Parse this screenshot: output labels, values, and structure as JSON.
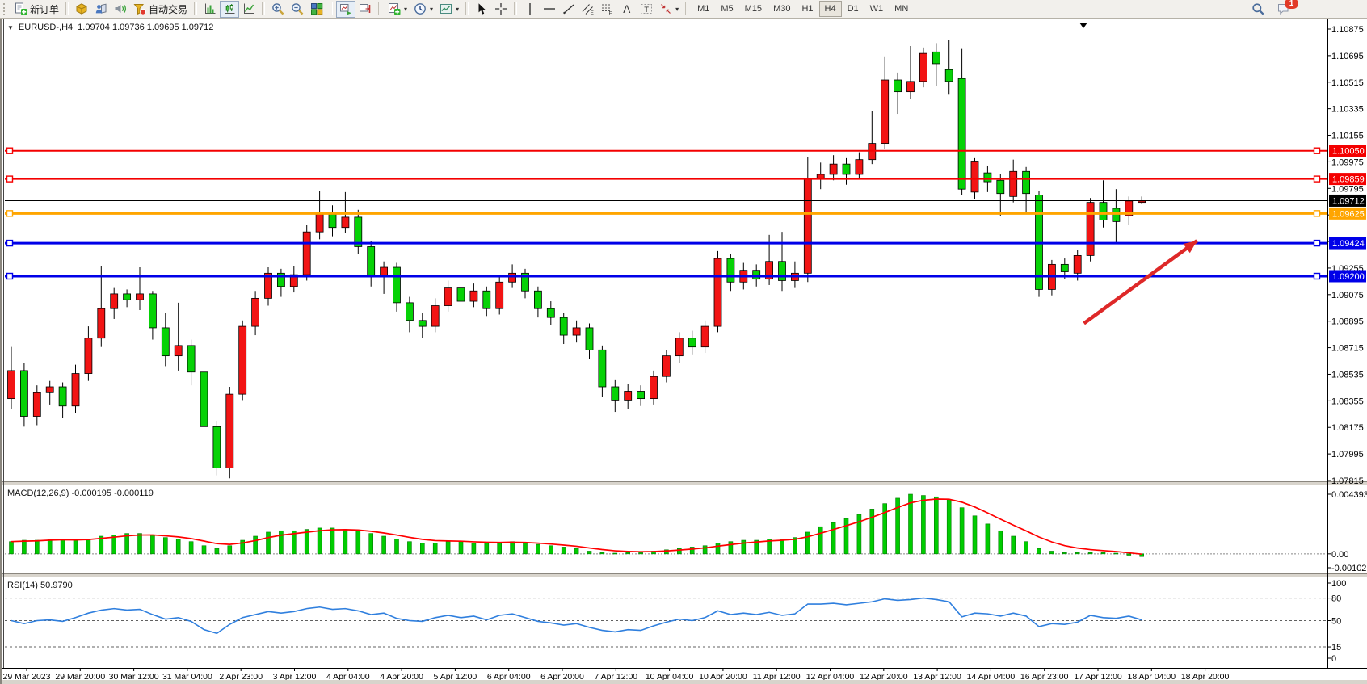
{
  "toolbar": {
    "buttons": [
      {
        "icon": "new-order",
        "label": "新订单",
        "name": "new-order-button"
      },
      {
        "sep": true
      },
      {
        "icon": "market-watch",
        "name": "market-watch-button"
      },
      {
        "icon": "data-window",
        "name": "data-window-button"
      },
      {
        "icon": "navigator",
        "name": "navigator-button"
      },
      {
        "icon": "auto-trading",
        "label": "自动交易",
        "name": "auto-trading-button"
      },
      {
        "sep": true
      },
      {
        "icon": "bar-chart",
        "name": "bar-chart-button"
      },
      {
        "icon": "candle-chart",
        "name": "candle-chart-button",
        "pressed": true
      },
      {
        "icon": "line-chart",
        "name": "line-chart-button"
      },
      {
        "sep": true
      },
      {
        "icon": "zoom-in",
        "name": "zoom-in-button"
      },
      {
        "icon": "zoom-out",
        "name": "zoom-out-button"
      },
      {
        "icon": "tile-windows",
        "name": "tile-windows-button"
      },
      {
        "sep": true
      },
      {
        "icon": "auto-scroll",
        "name": "auto-scroll-button",
        "pressed": true
      },
      {
        "icon": "chart-shift",
        "name": "chart-shift-button"
      },
      {
        "sep": true
      },
      {
        "icon": "indicators",
        "name": "indicators-button",
        "dd": true
      },
      {
        "icon": "periods",
        "name": "periods-button",
        "dd": true
      },
      {
        "icon": "templates",
        "name": "templates-button",
        "dd": true
      },
      {
        "sep": true
      },
      {
        "icon": "cursor",
        "name": "cursor-button"
      },
      {
        "icon": "crosshair",
        "name": "crosshair-button"
      },
      {
        "sep": true
      },
      {
        "icon": "vline",
        "name": "vertical-line-button"
      },
      {
        "icon": "hline",
        "name": "horizontal-line-button"
      },
      {
        "icon": "trendline",
        "name": "trendline-button"
      },
      {
        "icon": "channel",
        "name": "equidistant-channel-button"
      },
      {
        "icon": "fibo",
        "name": "fibonacci-button"
      },
      {
        "icon": "text",
        "name": "text-button"
      },
      {
        "icon": "text-label",
        "name": "text-label-button"
      },
      {
        "icon": "arrows",
        "name": "arrows-button",
        "dd": true
      },
      {
        "sep": true
      }
    ],
    "timeframes": [
      "M1",
      "M5",
      "M15",
      "M30",
      "H1",
      "H4",
      "D1",
      "W1",
      "MN"
    ],
    "active_timeframe": "H4",
    "notification_count": "1"
  },
  "title": {
    "symbol_period": "EURUSD-,H4",
    "ohlc": "1.09704 1.09736 1.09695 1.09712"
  },
  "indicators": {
    "macd": {
      "name": "MACD(12,26,9)",
      "value_main": "-0.000195",
      "value_signal": "-0.000119"
    },
    "rsi": {
      "name": "RSI(14)",
      "value": "50.9790"
    }
  },
  "colors": {
    "bull": "#f21414",
    "bear": "#06d206",
    "candle_stroke": "#000000",
    "line_red": "#f40000",
    "line_blue": "#0000e8",
    "line_orange": "#ffa500",
    "price_line": "#000000",
    "macd_hist": "#00cc00",
    "macd_signal": "#ff0000",
    "rsi_line": "#2f7fde",
    "rsi_level": "#606060",
    "arrow": "#de2828",
    "badge_text": "#ffffff"
  },
  "chart_data": [
    {
      "type": "candlestick",
      "title": "EURUSD-,H4",
      "price_axis": {
        "top_price": 1.10875,
        "bottom_price": 1.07815,
        "tick_step": 0.0018,
        "labels": [
          "1.10875",
          "1.10695",
          "1.10515",
          "1.10335",
          "1.10155",
          "1.09975",
          "1.09795",
          "1.09615",
          "1.09435",
          "1.09255",
          "1.09075",
          "1.08895",
          "1.08715",
          "1.08535",
          "1.08355",
          "1.08175",
          "1.07995",
          "1.07815"
        ]
      },
      "hlines": [
        {
          "price": 1.1005,
          "label": "1.10050",
          "color": "#f40000",
          "width": 2,
          "markers": true
        },
        {
          "price": 1.09859,
          "label": "1.09859",
          "color": "#f40000",
          "width": 2,
          "markers": true
        },
        {
          "price": 1.09712,
          "label": "1.09712",
          "color": "#000000",
          "width": 1,
          "markers": false
        },
        {
          "price": 1.09625,
          "label": "1.09625",
          "color": "#ffa500",
          "width": 3,
          "markers": true
        },
        {
          "price": 1.09424,
          "label": "1.09424",
          "color": "#0000e8",
          "width": 3,
          "markers": true
        },
        {
          "price": 1.092,
          "label": "1.09200",
          "color": "#0000e8",
          "width": 3,
          "markers": true
        }
      ],
      "time_labels": [
        "29 Mar 2023",
        "29 Mar 20:00",
        "30 Mar 12:00",
        "31 Mar 04:00",
        "2 Apr 23:00",
        "3 Apr 12:00",
        "4 Apr 04:00",
        "4 Apr 20:00",
        "5 Apr 12:00",
        "6 Apr 04:00",
        "6 Apr 20:00",
        "7 Apr 12:00",
        "10 Apr 04:00",
        "10 Apr 20:00",
        "11 Apr 12:00",
        "12 Apr 04:00",
        "12 Apr 20:00",
        "13 Apr 12:00",
        "14 Apr 04:00",
        "16 Apr 23:00",
        "17 Apr 12:00",
        "18 Apr 04:00",
        "18 Apr 20:00"
      ],
      "candles_ohlc": [
        [
          1.0837,
          1.0872,
          1.083,
          1.0856
        ],
        [
          1.0856,
          1.0861,
          1.0818,
          1.0825
        ],
        [
          1.0825,
          1.0846,
          1.0819,
          1.0841
        ],
        [
          1.0841,
          1.0849,
          1.0833,
          1.0845
        ],
        [
          1.0845,
          1.0848,
          1.0824,
          1.0832
        ],
        [
          1.0832,
          1.086,
          1.0827,
          1.0854
        ],
        [
          1.0854,
          1.0886,
          1.0849,
          1.0878
        ],
        [
          1.0878,
          1.0927,
          1.0872,
          1.0898
        ],
        [
          1.0898,
          1.0912,
          1.0891,
          1.0908
        ],
        [
          1.0908,
          1.0911,
          1.0899,
          1.0904
        ],
        [
          1.0904,
          1.0926,
          1.0897,
          1.0908
        ],
        [
          1.0908,
          1.091,
          1.0877,
          1.0885
        ],
        [
          1.0885,
          1.0895,
          1.0859,
          1.0866
        ],
        [
          1.0866,
          1.0902,
          1.0856,
          1.0873
        ],
        [
          1.0873,
          1.0877,
          1.0846,
          1.0855
        ],
        [
          1.0855,
          1.0857,
          1.081,
          1.0818
        ],
        [
          1.0818,
          1.0822,
          1.0785,
          1.079
        ],
        [
          1.079,
          1.0845,
          1.0783,
          1.084
        ],
        [
          1.084,
          1.089,
          1.0836,
          1.0886
        ],
        [
          1.0886,
          1.091,
          1.088,
          1.0905
        ],
        [
          1.0905,
          1.0926,
          1.09,
          1.0922
        ],
        [
          1.0922,
          1.0925,
          1.0906,
          1.0913
        ],
        [
          1.0913,
          1.0927,
          1.0909,
          1.0921
        ],
        [
          1.0921,
          1.0955,
          1.0917,
          1.095
        ],
        [
          1.095,
          1.0978,
          1.0945,
          1.0962
        ],
        [
          1.0962,
          1.0968,
          1.0947,
          1.0953
        ],
        [
          1.0953,
          1.0977,
          1.0949,
          1.096
        ],
        [
          1.096,
          1.0965,
          1.0935,
          1.094
        ],
        [
          1.094,
          1.0944,
          1.0913,
          1.092
        ],
        [
          1.092,
          1.093,
          1.0908,
          1.0926
        ],
        [
          1.0926,
          1.0929,
          1.0896,
          1.0902
        ],
        [
          1.0902,
          1.0906,
          1.0882,
          1.089
        ],
        [
          1.089,
          1.0895,
          1.0878,
          1.0886
        ],
        [
          1.0886,
          1.0905,
          1.0882,
          1.09
        ],
        [
          1.09,
          1.0917,
          1.0896,
          1.0912
        ],
        [
          1.0912,
          1.0916,
          1.0898,
          1.0903
        ],
        [
          1.0903,
          1.0915,
          1.0899,
          1.091
        ],
        [
          1.091,
          1.0913,
          1.0893,
          1.0898
        ],
        [
          1.0898,
          1.0921,
          1.0894,
          1.0916
        ],
        [
          1.0916,
          1.0928,
          1.0912,
          1.0922
        ],
        [
          1.0922,
          1.0925,
          1.0905,
          1.091
        ],
        [
          1.091,
          1.0913,
          1.0892,
          1.0898
        ],
        [
          1.0898,
          1.0903,
          1.0887,
          1.0892
        ],
        [
          1.0892,
          1.0895,
          1.0874,
          1.088
        ],
        [
          1.088,
          1.089,
          1.0875,
          1.0885
        ],
        [
          1.0885,
          1.0888,
          1.0864,
          1.087
        ],
        [
          1.087,
          1.0873,
          1.0838,
          1.0845
        ],
        [
          1.0845,
          1.085,
          1.0828,
          1.0836
        ],
        [
          1.0836,
          1.0847,
          1.083,
          1.0842
        ],
        [
          1.0842,
          1.0846,
          1.0832,
          1.0837
        ],
        [
          1.0837,
          1.0856,
          1.0833,
          1.0852
        ],
        [
          1.0852,
          1.087,
          1.0848,
          1.0866
        ],
        [
          1.0866,
          1.0882,
          1.0861,
          1.0878
        ],
        [
          1.0878,
          1.0883,
          1.0867,
          1.0872
        ],
        [
          1.0872,
          1.089,
          1.0868,
          1.0886
        ],
        [
          1.0886,
          1.0937,
          1.0882,
          1.0932
        ],
        [
          1.0932,
          1.0935,
          1.091,
          1.0916
        ],
        [
          1.0916,
          1.0929,
          1.0911,
          1.0924
        ],
        [
          1.0924,
          1.0928,
          1.0913,
          1.0918
        ],
        [
          1.0918,
          1.0948,
          1.0914,
          1.093
        ],
        [
          1.093,
          1.095,
          1.091,
          1.0917
        ],
        [
          1.0917,
          1.093,
          1.0912,
          1.0922
        ],
        [
          1.0922,
          1.1001,
          1.0916,
          1.0986
        ],
        [
          1.0986,
          1.0997,
          1.0979,
          1.0989
        ],
        [
          1.0989,
          1.1002,
          1.0985,
          1.0996
        ],
        [
          1.0996,
          1.1,
          1.0982,
          1.0989
        ],
        [
          1.0989,
          1.1004,
          1.0986,
          1.0999
        ],
        [
          1.0999,
          1.1032,
          1.0996,
          1.101
        ],
        [
          1.101,
          1.1069,
          1.1006,
          1.1053
        ],
        [
          1.1053,
          1.1058,
          1.103,
          1.1045
        ],
        [
          1.1045,
          1.1076,
          1.104,
          1.1052
        ],
        [
          1.1052,
          1.1075,
          1.1048,
          1.1071
        ],
        [
          1.1072,
          1.1078,
          1.1049,
          1.1064
        ],
        [
          1.106,
          1.108,
          1.1043,
          1.1052
        ],
        [
          1.1054,
          1.1074,
          1.0975,
          1.0979
        ],
        [
          1.0977,
          1.1,
          1.0972,
          1.0998
        ],
        [
          1.099,
          1.0995,
          1.0977,
          1.0984
        ],
        [
          1.0985,
          1.0989,
          1.0961,
          1.0976
        ],
        [
          1.0974,
          1.0999,
          1.097,
          1.0991
        ],
        [
          1.0991,
          1.0994,
          1.0962,
          1.0976
        ],
        [
          1.0975,
          1.0978,
          1.0906,
          1.0911
        ],
        [
          1.0911,
          1.0931,
          1.0907,
          1.0928
        ],
        [
          1.0928,
          1.0932,
          1.0918,
          1.0923
        ],
        [
          1.0922,
          1.0938,
          1.0917,
          1.0934
        ],
        [
          1.0934,
          1.0973,
          1.093,
          1.097
        ],
        [
          1.097,
          1.0985,
          1.0953,
          1.0958
        ],
        [
          1.0966,
          1.0979,
          1.0943,
          1.0957
        ],
        [
          1.0961,
          1.0974,
          1.0955,
          1.0971
        ],
        [
          1.097,
          1.0974,
          1.0969,
          1.0971
        ]
      ],
      "annotation_arrow": {
        "from_bar": 83.5,
        "from_price": 1.0888,
        "to_bar": 92.3,
        "to_price": 1.0944
      }
    },
    {
      "type": "bar",
      "name": "MACD(12,26,9)",
      "axis": {
        "max": 0.004393,
        "min": -0.001021,
        "labels": [
          {
            "v": 0.004393,
            "label": "0.004393"
          },
          {
            "v": 0,
            "label": "0.00"
          },
          {
            "v": -0.001021,
            "label": "-0.001021"
          }
        ]
      },
      "values": [
        0.0009,
        0.001,
        0.001,
        0.0011,
        0.0011,
        0.001,
        0.0011,
        0.0013,
        0.0014,
        0.0015,
        0.0015,
        0.0014,
        0.0012,
        0.0011,
        0.0009,
        0.0006,
        0.0004,
        0.0006,
        0.001,
        0.0013,
        0.0016,
        0.0017,
        0.0017,
        0.0018,
        0.0019,
        0.0019,
        0.0018,
        0.0017,
        0.0015,
        0.0013,
        0.0011,
        0.0009,
        0.0008,
        0.0008,
        0.0009,
        0.0009,
        0.0008,
        0.0008,
        0.0008,
        0.0009,
        0.0008,
        0.0007,
        0.0006,
        0.0005,
        0.0004,
        0.0002,
        0.0001,
        5e-05,
        0.0001,
        0.0001,
        0.0002,
        0.0003,
        0.0004,
        0.0005,
        0.0006,
        0.0008,
        0.0009,
        0.001,
        0.001,
        0.0011,
        0.0011,
        0.0012,
        0.0016,
        0.002,
        0.0023,
        0.0026,
        0.0029,
        0.0033,
        0.0037,
        0.0041,
        0.0044,
        0.0043,
        0.0042,
        0.004,
        0.0034,
        0.0028,
        0.0022,
        0.0017,
        0.0013,
        0.0009,
        0.0004,
        0.0002,
        0.0001,
        0.0001,
        0.0001,
        0.0001,
        5e-05,
        -0.0001,
        -0.0002
      ]
    },
    {
      "type": "line",
      "name": "RSI(14)",
      "axis": {
        "min": 0,
        "max": 100,
        "labels": [
          {
            "v": 100,
            "label": "100"
          },
          {
            "v": 80,
            "label": "80",
            "dashed": true
          },
          {
            "v": 50,
            "label": "50",
            "dashed": true
          },
          {
            "v": 15,
            "label": "15",
            "dashed": true
          },
          {
            "v": 0,
            "label": "0"
          }
        ]
      },
      "values": [
        50,
        46,
        50,
        51,
        49,
        54,
        60,
        64,
        66,
        64,
        65,
        58,
        52,
        54,
        49,
        38,
        33,
        45,
        54,
        58,
        62,
        60,
        62,
        66,
        68,
        65,
        66,
        63,
        58,
        60,
        53,
        50,
        49,
        54,
        57,
        54,
        56,
        51,
        57,
        59,
        54,
        49,
        47,
        44,
        46,
        41,
        37,
        35,
        38,
        37,
        43,
        48,
        52,
        50,
        54,
        63,
        58,
        60,
        58,
        61,
        57,
        59,
        72,
        72,
        73,
        71,
        73,
        75,
        79,
        77,
        78,
        80,
        78,
        75,
        55,
        60,
        59,
        56,
        60,
        56,
        42,
        46,
        45,
        48,
        57,
        54,
        53,
        56,
        51
      ]
    }
  ]
}
